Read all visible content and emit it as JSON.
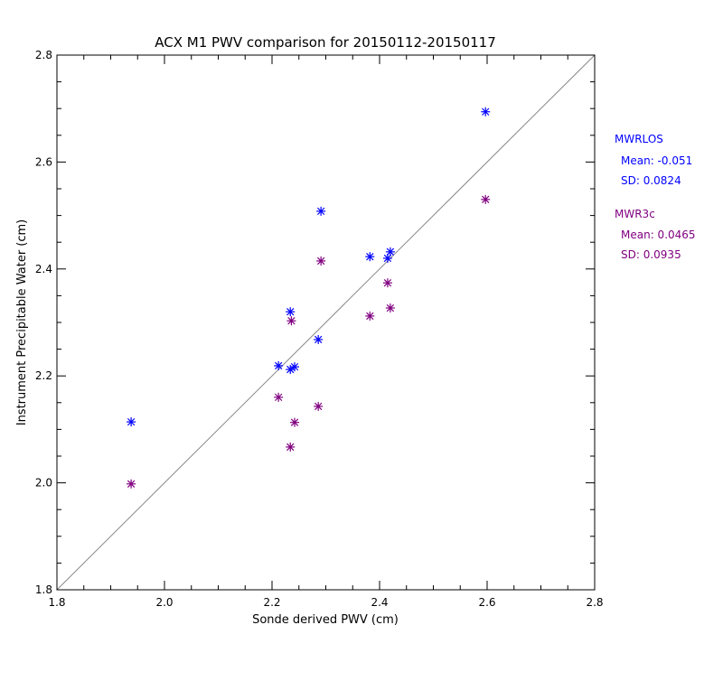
{
  "chart_data": {
    "type": "scatter",
    "title": "ACX M1 PWV comparison for 20150112-20150117",
    "xlabel": "Sonde derived PWV (cm)",
    "ylabel": "Instrument Precipitable Water (cm)",
    "xlim": [
      1.8,
      2.8
    ],
    "ylim": [
      1.8,
      2.8
    ],
    "xticks": [
      "1.8",
      "2.0",
      "2.2",
      "2.4",
      "2.6",
      "2.8"
    ],
    "yticks": [
      "1.8",
      "2.0",
      "2.2",
      "2.4",
      "2.6",
      "2.8"
    ],
    "grid": false,
    "reference_line": "1:1",
    "legend_position": "right",
    "series": [
      {
        "name": "MWRLOS",
        "color": "#0000ff",
        "marker": "asterisk",
        "mean_label": "Mean: -0.051",
        "sd_label": "SD: 0.0824",
        "x": [
          1.938,
          2.212,
          2.234,
          2.242,
          2.234,
          2.286,
          2.291,
          2.382,
          2.415,
          2.42,
          2.597
        ],
        "y": [
          2.114,
          2.219,
          2.212,
          2.217,
          2.32,
          2.268,
          2.508,
          2.423,
          2.42,
          2.432,
          2.694
        ]
      },
      {
        "name": "MWR3c",
        "color": "#800080",
        "marker": "asterisk",
        "mean_label": "Mean: 0.0465",
        "sd_label": "SD: 0.0935",
        "x": [
          1.938,
          2.212,
          2.234,
          2.242,
          2.236,
          2.286,
          2.291,
          2.382,
          2.415,
          2.42,
          2.597
        ],
        "y": [
          1.998,
          2.16,
          2.067,
          2.113,
          2.303,
          2.143,
          2.415,
          2.312,
          2.374,
          2.327,
          2.53
        ]
      }
    ]
  }
}
